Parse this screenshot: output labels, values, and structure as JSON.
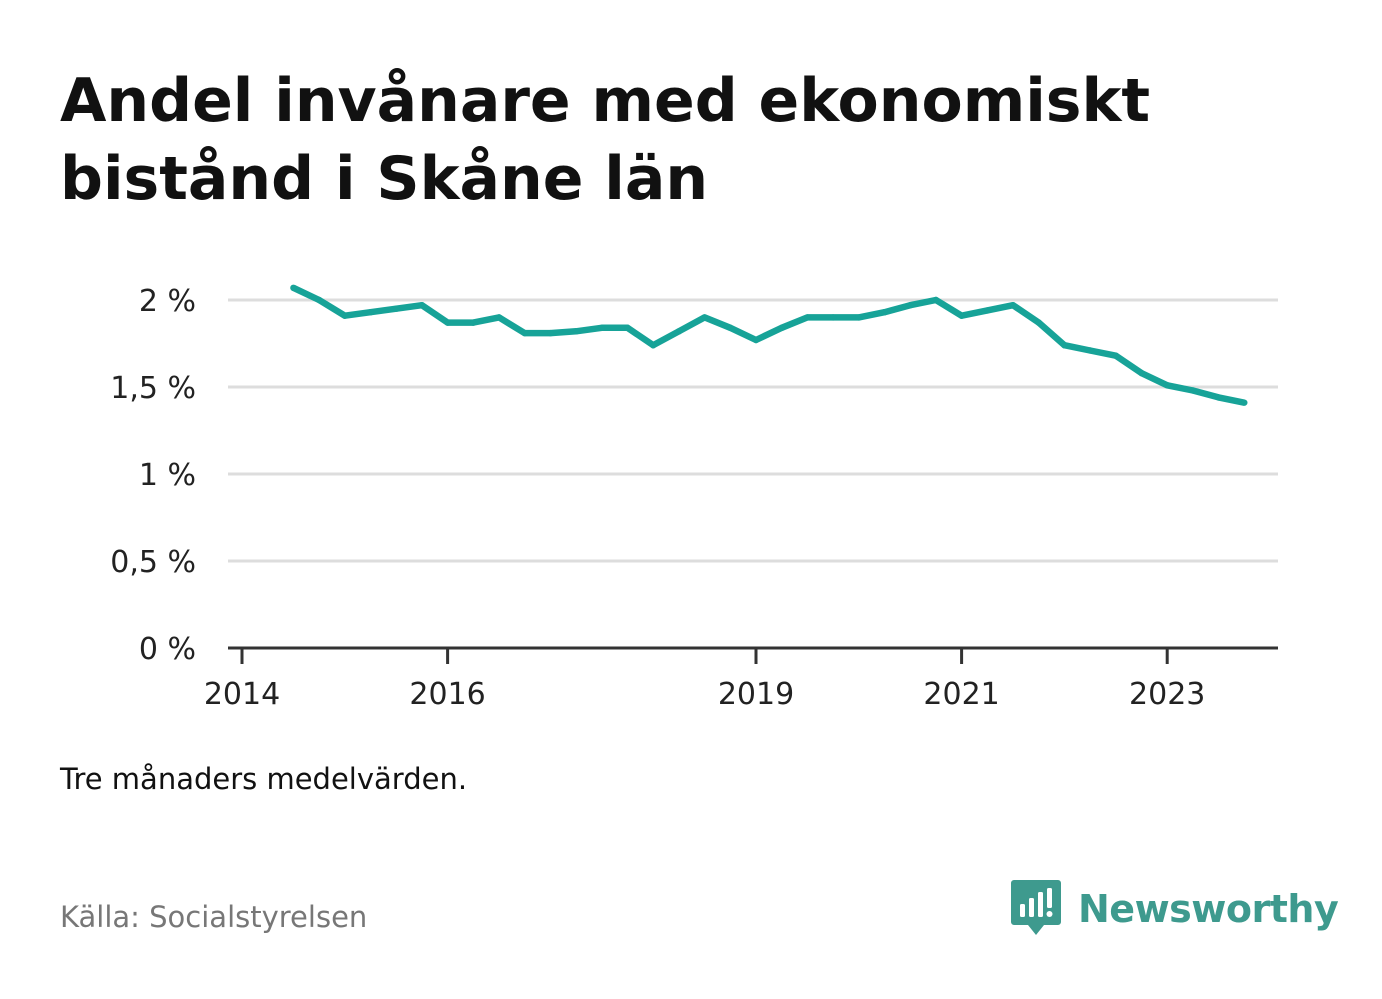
{
  "chart_data": {
    "type": "line",
    "title": "Andel invånare med ekonomiskt bistånd i Skåne län",
    "subtitle": "Tre månaders medelvärden.",
    "source": "Källa: Socialstyrelsen",
    "x_ticks": [
      "2014",
      "2016",
      "2019",
      "2021",
      "2023"
    ],
    "y_ticks": [
      "0 %",
      "0,5 %",
      "1 %",
      "1,5 %",
      "2 %"
    ],
    "ylim": [
      0,
      2.1
    ],
    "grid": true,
    "series": [
      {
        "color": "#17a398",
        "x": [
          "2014-Q2",
          "2014-Q3",
          "2014-Q4",
          "2015-Q1",
          "2015-Q2",
          "2015-Q3",
          "2015-Q4",
          "2016-Q1",
          "2016-Q2",
          "2016-Q3",
          "2016-Q4",
          "2017-Q1",
          "2017-Q2",
          "2017-Q3",
          "2017-Q4",
          "2018-Q1",
          "2018-Q2",
          "2018-Q3",
          "2018-Q4",
          "2019-Q1",
          "2019-Q2",
          "2019-Q3",
          "2019-Q4",
          "2020-Q1",
          "2020-Q2",
          "2020-Q3",
          "2020-Q4",
          "2021-Q1",
          "2021-Q2",
          "2021-Q3",
          "2021-Q4",
          "2022-Q1",
          "2022-Q2",
          "2022-Q3",
          "2022-Q4",
          "2023-Q1",
          "2023-Q2",
          "2023-Q3"
        ],
        "values": [
          2.07,
          2.0,
          1.91,
          1.93,
          1.95,
          1.97,
          1.87,
          1.87,
          1.9,
          1.81,
          1.81,
          1.82,
          1.84,
          1.84,
          1.74,
          1.82,
          1.9,
          1.84,
          1.77,
          1.84,
          1.9,
          1.9,
          1.9,
          1.93,
          1.97,
          2.0,
          1.91,
          1.94,
          1.97,
          1.87,
          1.74,
          1.71,
          1.68,
          1.58,
          1.51,
          1.48,
          1.44,
          1.41
        ]
      }
    ]
  },
  "brand": {
    "name": "Newsworthy",
    "icon": "newsworthy-logo-icon",
    "color": "#3e9a8e"
  },
  "colors": {
    "line": "#17a398",
    "grid": "#dddddd",
    "axis": "#333333"
  }
}
